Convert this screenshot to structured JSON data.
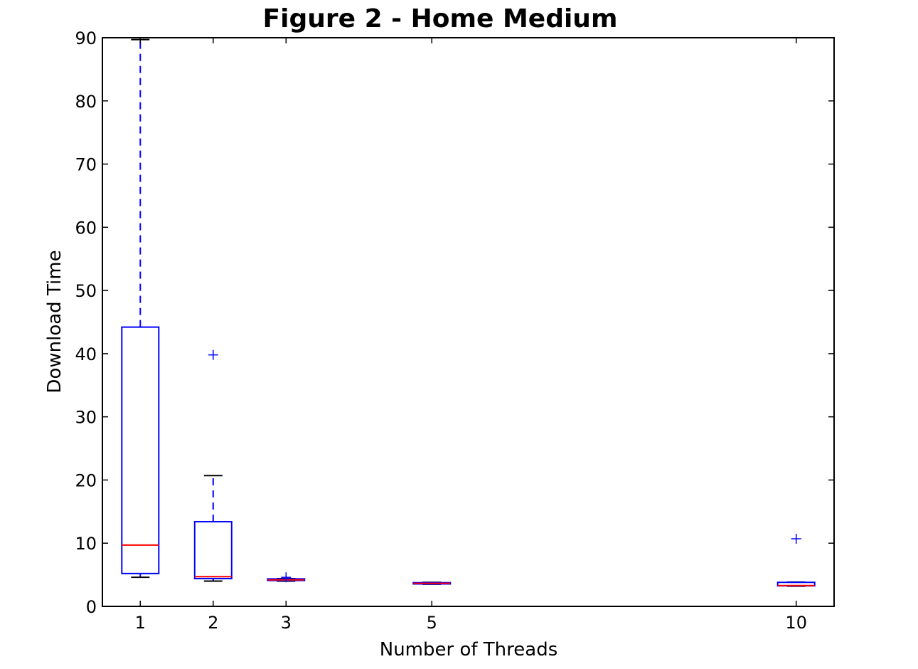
{
  "chart_data": {
    "type": "boxplot",
    "title": "Figure 2 - Home Medium",
    "xlabel": "Number of Threads",
    "ylabel": "Download Time",
    "ylim": [
      0,
      90
    ],
    "yticks": [
      0,
      10,
      20,
      30,
      40,
      50,
      60,
      70,
      80,
      90
    ],
    "x_ticks": [
      1,
      2,
      3,
      5,
      10
    ],
    "x_range": [
      0.48,
      10.52
    ],
    "grid": false,
    "colors": {
      "box": "#0000ff",
      "median": "#ff0000",
      "cap": "#000000",
      "flier": "#0000ff",
      "axes": "#000000"
    },
    "boxes": [
      {
        "x": 1,
        "whisker_low": 4.6,
        "q1": 5.2,
        "median": 9.7,
        "q3": 44.2,
        "whisker_high": 89.7,
        "fliers": []
      },
      {
        "x": 2,
        "whisker_low": 4.0,
        "q1": 4.4,
        "median": 4.7,
        "q3": 13.4,
        "whisker_high": 20.7,
        "fliers": [
          39.8
        ]
      },
      {
        "x": 3,
        "whisker_low": 4.0,
        "q1": 4.1,
        "median": 4.2,
        "q3": 4.35,
        "whisker_high": 4.4,
        "fliers": [
          4.6
        ]
      },
      {
        "x": 5,
        "whisker_low": 3.5,
        "q1": 3.55,
        "median": 3.65,
        "q3": 3.75,
        "whisker_high": 3.8,
        "fliers": []
      },
      {
        "x": 10,
        "whisker_low": 3.2,
        "q1": 3.25,
        "median": 3.3,
        "q3": 3.8,
        "whisker_high": 3.85,
        "fliers": [
          10.7
        ]
      }
    ]
  }
}
